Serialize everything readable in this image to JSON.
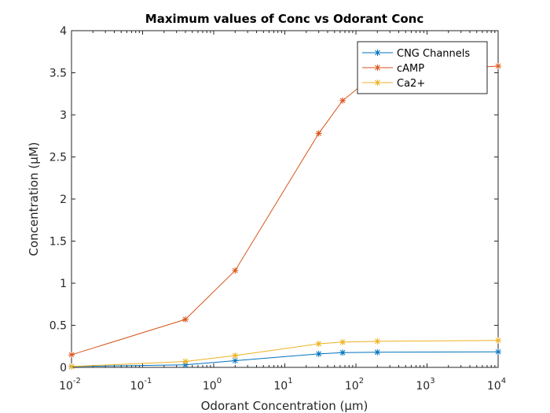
{
  "chart_data": {
    "type": "line",
    "title": "Maximum values of Conc vs Odorant Conc",
    "xlabel": "Odorant Concentration (μm)",
    "ylabel": "Concentration (μM)",
    "xscale": "log",
    "xlim": [
      0.01,
      10000
    ],
    "ylim": [
      0,
      4
    ],
    "grid": false,
    "legend_position": "top-right",
    "xticks": [
      {
        "value": 0.01,
        "base": "10",
        "exp": "-2"
      },
      {
        "value": 0.1,
        "base": "10",
        "exp": "-1"
      },
      {
        "value": 1,
        "base": "10",
        "exp": "0"
      },
      {
        "value": 10,
        "base": "10",
        "exp": "1"
      },
      {
        "value": 100,
        "base": "10",
        "exp": "2"
      },
      {
        "value": 1000,
        "base": "10",
        "exp": "3"
      },
      {
        "value": 10000,
        "base": "10",
        "exp": "4"
      }
    ],
    "yticks": [
      {
        "value": 0,
        "label": "0"
      },
      {
        "value": 0.5,
        "label": "0.5"
      },
      {
        "value": 1,
        "label": "1"
      },
      {
        "value": 1.5,
        "label": "1.5"
      },
      {
        "value": 2,
        "label": "2"
      },
      {
        "value": 2.5,
        "label": "2.5"
      },
      {
        "value": 3,
        "label": "3"
      },
      {
        "value": 3.5,
        "label": "3.5"
      },
      {
        "value": 4,
        "label": "4"
      }
    ],
    "x": [
      0.01,
      0.4,
      2,
      30,
      65,
      200,
      10000
    ],
    "series": [
      {
        "name": "CNG Channels",
        "color": "#0072BD",
        "marker": "asterisk",
        "values": [
          0.01,
          0.03,
          0.08,
          0.16,
          0.175,
          0.18,
          0.185
        ]
      },
      {
        "name": "cAMP",
        "color": "#D95319",
        "marker": "asterisk",
        "values": [
          0.15,
          0.57,
          1.15,
          2.78,
          3.17,
          3.5,
          3.58
        ]
      },
      {
        "name": "Ca2+",
        "color": "#EDB120",
        "marker": "asterisk",
        "values": [
          0.01,
          0.07,
          0.14,
          0.28,
          0.3,
          0.31,
          0.32
        ]
      }
    ]
  }
}
